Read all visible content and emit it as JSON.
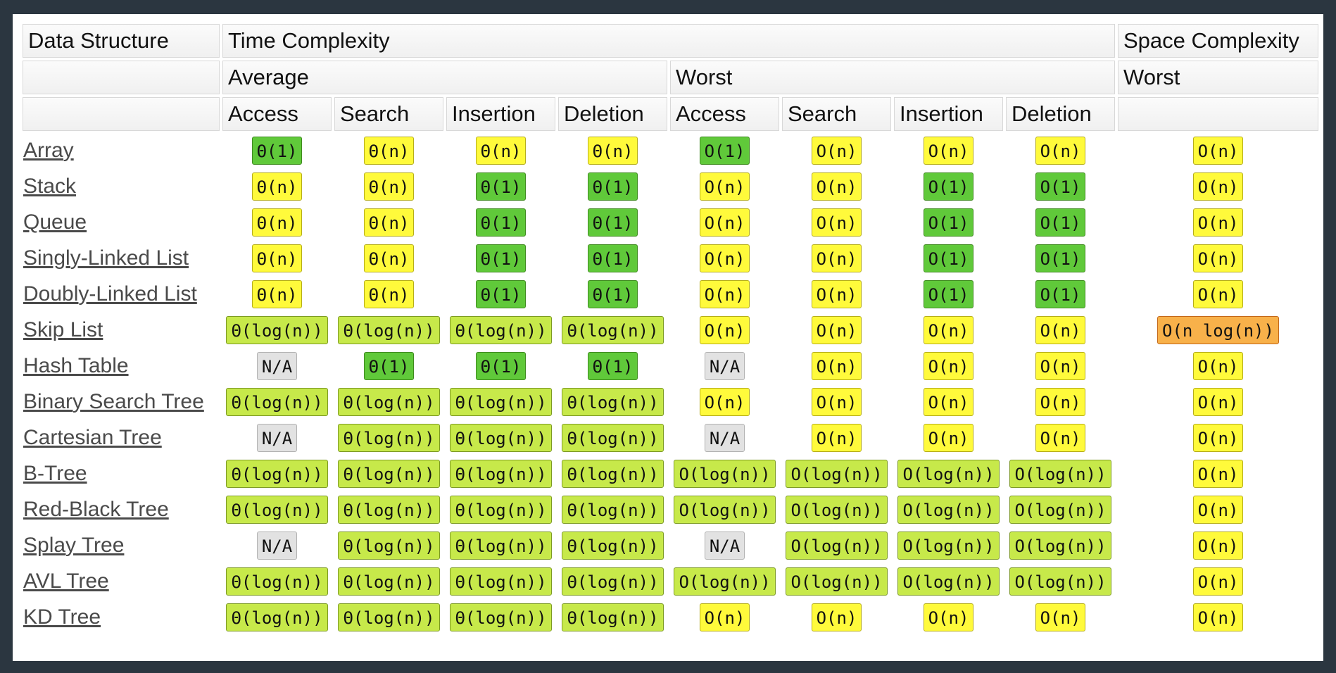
{
  "header": {
    "data_structure": "Data Structure",
    "time_complexity": "Time Complexity",
    "space_complexity": "Space Complexity",
    "average": "Average",
    "worst": "Worst",
    "space_worst": "Worst",
    "columns": [
      "Access",
      "Search",
      "Insertion",
      "Deletion",
      "Access",
      "Search",
      "Insertion",
      "Deletion"
    ]
  },
  "rating_colors": {
    "good": "#60c93a",
    "fair": "#c7e94a",
    "ok": "#fffa3b",
    "bad": "#f8b14a",
    "na": "#e2e2e2"
  },
  "rows": [
    {
      "name": "Array",
      "cells": [
        {
          "text": "Θ(1)",
          "rating": "good"
        },
        {
          "text": "Θ(n)",
          "rating": "ok"
        },
        {
          "text": "Θ(n)",
          "rating": "ok"
        },
        {
          "text": "Θ(n)",
          "rating": "ok"
        },
        {
          "text": "O(1)",
          "rating": "good"
        },
        {
          "text": "O(n)",
          "rating": "ok"
        },
        {
          "text": "O(n)",
          "rating": "ok"
        },
        {
          "text": "O(n)",
          "rating": "ok"
        },
        {
          "text": "O(n)",
          "rating": "ok"
        }
      ]
    },
    {
      "name": "Stack",
      "cells": [
        {
          "text": "Θ(n)",
          "rating": "ok"
        },
        {
          "text": "Θ(n)",
          "rating": "ok"
        },
        {
          "text": "Θ(1)",
          "rating": "good"
        },
        {
          "text": "Θ(1)",
          "rating": "good"
        },
        {
          "text": "O(n)",
          "rating": "ok"
        },
        {
          "text": "O(n)",
          "rating": "ok"
        },
        {
          "text": "O(1)",
          "rating": "good"
        },
        {
          "text": "O(1)",
          "rating": "good"
        },
        {
          "text": "O(n)",
          "rating": "ok"
        }
      ]
    },
    {
      "name": "Queue",
      "cells": [
        {
          "text": "Θ(n)",
          "rating": "ok"
        },
        {
          "text": "Θ(n)",
          "rating": "ok"
        },
        {
          "text": "Θ(1)",
          "rating": "good"
        },
        {
          "text": "Θ(1)",
          "rating": "good"
        },
        {
          "text": "O(n)",
          "rating": "ok"
        },
        {
          "text": "O(n)",
          "rating": "ok"
        },
        {
          "text": "O(1)",
          "rating": "good"
        },
        {
          "text": "O(1)",
          "rating": "good"
        },
        {
          "text": "O(n)",
          "rating": "ok"
        }
      ]
    },
    {
      "name": "Singly-Linked List",
      "cells": [
        {
          "text": "Θ(n)",
          "rating": "ok"
        },
        {
          "text": "Θ(n)",
          "rating": "ok"
        },
        {
          "text": "Θ(1)",
          "rating": "good"
        },
        {
          "text": "Θ(1)",
          "rating": "good"
        },
        {
          "text": "O(n)",
          "rating": "ok"
        },
        {
          "text": "O(n)",
          "rating": "ok"
        },
        {
          "text": "O(1)",
          "rating": "good"
        },
        {
          "text": "O(1)",
          "rating": "good"
        },
        {
          "text": "O(n)",
          "rating": "ok"
        }
      ]
    },
    {
      "name": "Doubly-Linked List",
      "cells": [
        {
          "text": "Θ(n)",
          "rating": "ok"
        },
        {
          "text": "Θ(n)",
          "rating": "ok"
        },
        {
          "text": "Θ(1)",
          "rating": "good"
        },
        {
          "text": "Θ(1)",
          "rating": "good"
        },
        {
          "text": "O(n)",
          "rating": "ok"
        },
        {
          "text": "O(n)",
          "rating": "ok"
        },
        {
          "text": "O(1)",
          "rating": "good"
        },
        {
          "text": "O(1)",
          "rating": "good"
        },
        {
          "text": "O(n)",
          "rating": "ok"
        }
      ]
    },
    {
      "name": "Skip List",
      "cells": [
        {
          "text": "Θ(log(n))",
          "rating": "fair"
        },
        {
          "text": "Θ(log(n))",
          "rating": "fair"
        },
        {
          "text": "Θ(log(n))",
          "rating": "fair"
        },
        {
          "text": "Θ(log(n))",
          "rating": "fair"
        },
        {
          "text": "O(n)",
          "rating": "ok"
        },
        {
          "text": "O(n)",
          "rating": "ok"
        },
        {
          "text": "O(n)",
          "rating": "ok"
        },
        {
          "text": "O(n)",
          "rating": "ok"
        },
        {
          "text": "O(n log(n))",
          "rating": "bad"
        }
      ]
    },
    {
      "name": "Hash Table",
      "cells": [
        {
          "text": "N/A",
          "rating": "na"
        },
        {
          "text": "Θ(1)",
          "rating": "good"
        },
        {
          "text": "Θ(1)",
          "rating": "good"
        },
        {
          "text": "Θ(1)",
          "rating": "good"
        },
        {
          "text": "N/A",
          "rating": "na"
        },
        {
          "text": "O(n)",
          "rating": "ok"
        },
        {
          "text": "O(n)",
          "rating": "ok"
        },
        {
          "text": "O(n)",
          "rating": "ok"
        },
        {
          "text": "O(n)",
          "rating": "ok"
        }
      ]
    },
    {
      "name": "Binary Search Tree",
      "cells": [
        {
          "text": "Θ(log(n))",
          "rating": "fair"
        },
        {
          "text": "Θ(log(n))",
          "rating": "fair"
        },
        {
          "text": "Θ(log(n))",
          "rating": "fair"
        },
        {
          "text": "Θ(log(n))",
          "rating": "fair"
        },
        {
          "text": "O(n)",
          "rating": "ok"
        },
        {
          "text": "O(n)",
          "rating": "ok"
        },
        {
          "text": "O(n)",
          "rating": "ok"
        },
        {
          "text": "O(n)",
          "rating": "ok"
        },
        {
          "text": "O(n)",
          "rating": "ok"
        }
      ]
    },
    {
      "name": "Cartesian Tree",
      "cells": [
        {
          "text": "N/A",
          "rating": "na"
        },
        {
          "text": "Θ(log(n))",
          "rating": "fair"
        },
        {
          "text": "Θ(log(n))",
          "rating": "fair"
        },
        {
          "text": "Θ(log(n))",
          "rating": "fair"
        },
        {
          "text": "N/A",
          "rating": "na"
        },
        {
          "text": "O(n)",
          "rating": "ok"
        },
        {
          "text": "O(n)",
          "rating": "ok"
        },
        {
          "text": "O(n)",
          "rating": "ok"
        },
        {
          "text": "O(n)",
          "rating": "ok"
        }
      ]
    },
    {
      "name": "B-Tree",
      "cells": [
        {
          "text": "Θ(log(n))",
          "rating": "fair"
        },
        {
          "text": "Θ(log(n))",
          "rating": "fair"
        },
        {
          "text": "Θ(log(n))",
          "rating": "fair"
        },
        {
          "text": "Θ(log(n))",
          "rating": "fair"
        },
        {
          "text": "O(log(n))",
          "rating": "fair"
        },
        {
          "text": "O(log(n))",
          "rating": "fair"
        },
        {
          "text": "O(log(n))",
          "rating": "fair"
        },
        {
          "text": "O(log(n))",
          "rating": "fair"
        },
        {
          "text": "O(n)",
          "rating": "ok"
        }
      ]
    },
    {
      "name": "Red-Black Tree",
      "cells": [
        {
          "text": "Θ(log(n))",
          "rating": "fair"
        },
        {
          "text": "Θ(log(n))",
          "rating": "fair"
        },
        {
          "text": "Θ(log(n))",
          "rating": "fair"
        },
        {
          "text": "Θ(log(n))",
          "rating": "fair"
        },
        {
          "text": "O(log(n))",
          "rating": "fair"
        },
        {
          "text": "O(log(n))",
          "rating": "fair"
        },
        {
          "text": "O(log(n))",
          "rating": "fair"
        },
        {
          "text": "O(log(n))",
          "rating": "fair"
        },
        {
          "text": "O(n)",
          "rating": "ok"
        }
      ]
    },
    {
      "name": "Splay Tree",
      "cells": [
        {
          "text": "N/A",
          "rating": "na"
        },
        {
          "text": "Θ(log(n))",
          "rating": "fair"
        },
        {
          "text": "Θ(log(n))",
          "rating": "fair"
        },
        {
          "text": "Θ(log(n))",
          "rating": "fair"
        },
        {
          "text": "N/A",
          "rating": "na"
        },
        {
          "text": "O(log(n))",
          "rating": "fair"
        },
        {
          "text": "O(log(n))",
          "rating": "fair"
        },
        {
          "text": "O(log(n))",
          "rating": "fair"
        },
        {
          "text": "O(n)",
          "rating": "ok"
        }
      ]
    },
    {
      "name": "AVL Tree",
      "cells": [
        {
          "text": "Θ(log(n))",
          "rating": "fair"
        },
        {
          "text": "Θ(log(n))",
          "rating": "fair"
        },
        {
          "text": "Θ(log(n))",
          "rating": "fair"
        },
        {
          "text": "Θ(log(n))",
          "rating": "fair"
        },
        {
          "text": "O(log(n))",
          "rating": "fair"
        },
        {
          "text": "O(log(n))",
          "rating": "fair"
        },
        {
          "text": "O(log(n))",
          "rating": "fair"
        },
        {
          "text": "O(log(n))",
          "rating": "fair"
        },
        {
          "text": "O(n)",
          "rating": "ok"
        }
      ]
    },
    {
      "name": "KD Tree",
      "cells": [
        {
          "text": "Θ(log(n))",
          "rating": "fair"
        },
        {
          "text": "Θ(log(n))",
          "rating": "fair"
        },
        {
          "text": "Θ(log(n))",
          "rating": "fair"
        },
        {
          "text": "Θ(log(n))",
          "rating": "fair"
        },
        {
          "text": "O(n)",
          "rating": "ok"
        },
        {
          "text": "O(n)",
          "rating": "ok"
        },
        {
          "text": "O(n)",
          "rating": "ok"
        },
        {
          "text": "O(n)",
          "rating": "ok"
        },
        {
          "text": "O(n)",
          "rating": "ok"
        }
      ]
    }
  ]
}
